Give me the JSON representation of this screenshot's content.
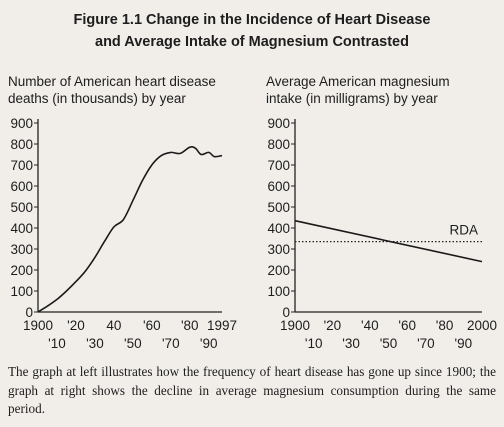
{
  "figure": {
    "title_line1": "Figure 1.1  Change in the Incidence of Heart Disease",
    "title_line2": "and Average Intake of Magnesium Contrasted",
    "caption": "The graph at left illustrates how the frequency of heart disease has gone up since 1900; the graph at right shows the decline in average magnesium consumption during the same period."
  },
  "chart_data": [
    {
      "type": "line",
      "ylabel_line1": "Number of American heart disease",
      "ylabel_line2": "deaths (in thousands) by year",
      "xlabel": "",
      "ylim": [
        0,
        900
      ],
      "yticks": [
        0,
        100,
        200,
        300,
        400,
        500,
        600,
        700,
        800,
        900
      ],
      "xlim": [
        1900,
        1997
      ],
      "xtick_labels_upper": [
        {
          "x": 1900,
          "label": "1900"
        },
        {
          "x": 1920,
          "label": "'20"
        },
        {
          "x": 1940,
          "label": "40"
        },
        {
          "x": 1960,
          "label": "'60"
        },
        {
          "x": 1980,
          "label": "'80"
        },
        {
          "x": 1997,
          "label": "1997"
        }
      ],
      "xtick_labels_lower": [
        {
          "x": 1910,
          "label": "'10"
        },
        {
          "x": 1930,
          "label": "'30"
        },
        {
          "x": 1950,
          "label": "'50"
        },
        {
          "x": 1970,
          "label": "'70"
        },
        {
          "x": 1990,
          "label": "'90"
        }
      ],
      "grid": false,
      "series": [
        {
          "x": [
            1900,
            1905,
            1910,
            1915,
            1920,
            1925,
            1930,
            1935,
            1940,
            1945,
            1950,
            1955,
            1960,
            1965,
            1970,
            1975,
            1980,
            1983,
            1986,
            1990,
            1993,
            1997
          ],
          "y": [
            0,
            28,
            60,
            100,
            145,
            195,
            260,
            335,
            405,
            440,
            530,
            625,
            700,
            745,
            760,
            755,
            785,
            780,
            750,
            760,
            740,
            745
          ]
        }
      ]
    },
    {
      "type": "line",
      "ylabel_line1": "Average American magnesium",
      "ylabel_line2": "intake (in milligrams) by year",
      "xlabel": "",
      "ylim": [
        0,
        900
      ],
      "yticks": [
        0,
        100,
        200,
        300,
        400,
        500,
        600,
        700,
        800,
        900
      ],
      "xlim": [
        1900,
        2000
      ],
      "xtick_labels_upper": [
        {
          "x": 1900,
          "label": "1900"
        },
        {
          "x": 1920,
          "label": "'20"
        },
        {
          "x": 1940,
          "label": "'40"
        },
        {
          "x": 1960,
          "label": "'60"
        },
        {
          "x": 1980,
          "label": "'80"
        },
        {
          "x": 2000,
          "label": "2000"
        }
      ],
      "xtick_labels_lower": [
        {
          "x": 1910,
          "label": "'10"
        },
        {
          "x": 1930,
          "label": "'30"
        },
        {
          "x": 1950,
          "label": "'50"
        },
        {
          "x": 1970,
          "label": "'70"
        },
        {
          "x": 1990,
          "label": "'90"
        }
      ],
      "grid": false,
      "series": [
        {
          "x": [
            1900,
            2000
          ],
          "y": [
            435,
            240
          ]
        }
      ],
      "reference_line": {
        "label": "RDA",
        "y": 335,
        "style": "dotted"
      }
    }
  ]
}
